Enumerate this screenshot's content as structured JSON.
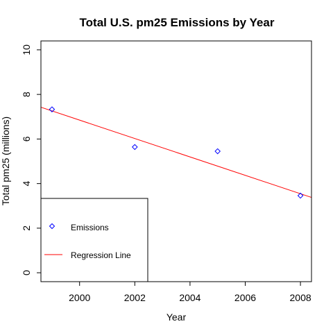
{
  "chart_data": {
    "type": "scatter",
    "title": "Total U.S. pm25 Emissions by Year",
    "xlabel": "Year",
    "ylabel": "Total pm25 (millions)",
    "xlim": [
      1998.6,
      2008.4
    ],
    "ylim": [
      -0.4,
      10.4
    ],
    "xticks": [
      2000,
      2002,
      2004,
      2006,
      2008
    ],
    "yticks": [
      0,
      2,
      4,
      6,
      8,
      10
    ],
    "grid": false,
    "legend_position": "bottom-left",
    "series": [
      {
        "name": "Emissions",
        "kind": "points",
        "marker": "diamond",
        "color": "#0000ff",
        "x": [
          1999,
          2002,
          2005,
          2008
        ],
        "y": [
          7.33,
          5.64,
          5.45,
          3.46
        ]
      },
      {
        "name": "Regression Line",
        "kind": "line",
        "color": "#ff0000",
        "intercept_at_1999": 7.26,
        "slope": -0.4128
      }
    ]
  }
}
